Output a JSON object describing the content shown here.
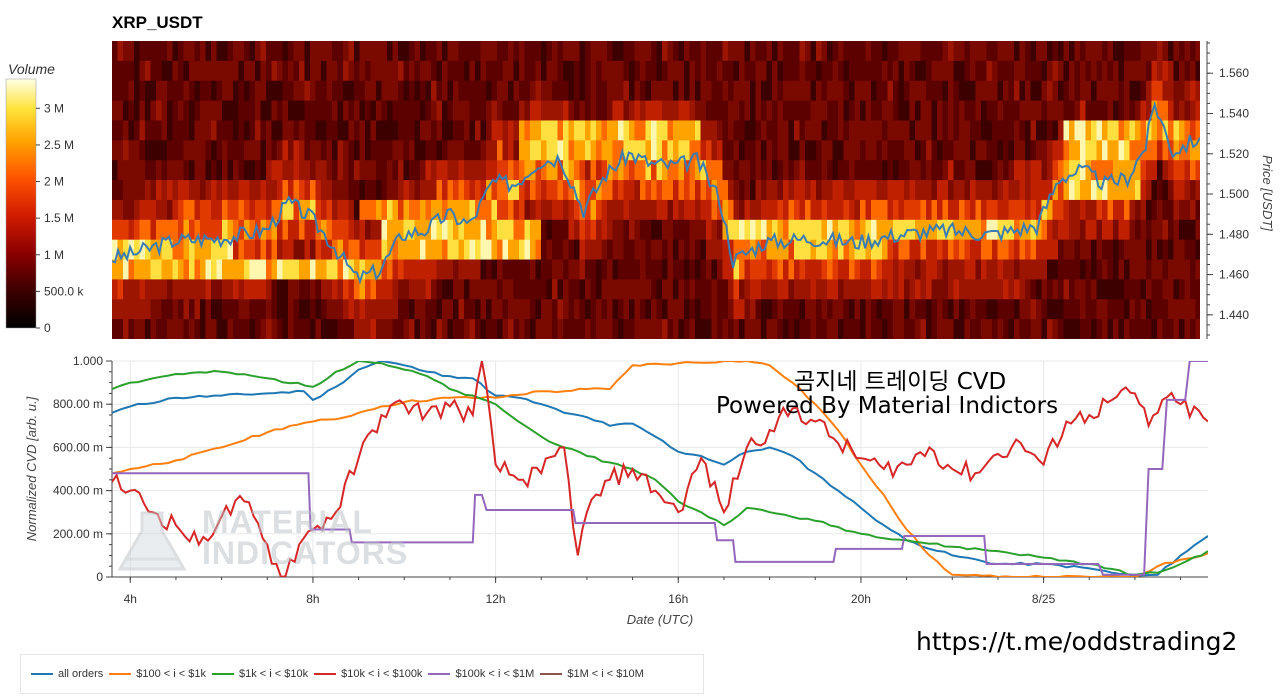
{
  "title": "XRP_USDT",
  "colorbar": {
    "label": "Volume",
    "ticks": [
      {
        "label": "0",
        "value": 0
      },
      {
        "label": "500.0 k",
        "value": 500000
      },
      {
        "label": "1 M",
        "value": 1000000
      },
      {
        "label": "1.5 M",
        "value": 1500000
      },
      {
        "label": "2 M",
        "value": 2000000
      },
      {
        "label": "2.5 M",
        "value": 2500000
      },
      {
        "label": "3 M",
        "value": 3000000
      }
    ],
    "max": 3400000
  },
  "heatmap": {
    "ylabel": "Price [USDT]",
    "ylim": [
      1.428,
      1.576
    ],
    "yticks": [
      "1.440",
      "1.460",
      "1.480",
      "1.500",
      "1.520",
      "1.540",
      "1.560"
    ]
  },
  "cvd_panel": {
    "ylabel": "Normalized CVD [arb. u.]",
    "xlabel": "Date (UTC)",
    "xlim_hours": [
      3.6,
      27.6
    ],
    "xticks": [
      {
        "label": "4h",
        "hour": 4
      },
      {
        "label": "8h",
        "hour": 8
      },
      {
        "label": "12h",
        "hour": 12
      },
      {
        "label": "16h",
        "hour": 16
      },
      {
        "label": "20h",
        "hour": 20
      },
      {
        "label": "8/25",
        "hour": 24
      }
    ],
    "yticks": [
      {
        "label": "0",
        "value": 0
      },
      {
        "label": "200.00 m",
        "value": 0.2
      },
      {
        "label": "400.00 m",
        "value": 0.4
      },
      {
        "label": "600.00 m",
        "value": 0.6
      },
      {
        "label": "800.00 m",
        "value": 0.8
      },
      {
        "label": "1.000",
        "value": 1.0
      }
    ]
  },
  "annotations": {
    "cvd_title": "곰지네 트레이딩 CVD",
    "powered_by": "Powered By Material Indictors",
    "telegram": "https://t.me/oddstrading2",
    "logo_text": "MATERIAL INDICATORS"
  },
  "chart_data": [
    {
      "type": "heatmap",
      "title": "XRP_USDT",
      "ylabel": "Price [USDT]",
      "ylim": [
        1.428,
        1.576
      ],
      "price_series": {
        "name": "",
        "color": "#3b7db3",
        "x_hours": [
          3.6,
          4,
          5,
          6,
          7,
          7.5,
          8,
          8.5,
          9,
          9.5,
          10,
          10.5,
          11,
          11.5,
          12,
          12.5,
          13,
          13.5,
          14,
          14.5,
          15,
          15.5,
          16,
          16.5,
          17,
          17.3,
          18,
          19,
          20,
          21,
          22,
          23,
          24,
          24.5,
          25,
          25.5,
          26,
          26.4,
          26.6,
          27,
          27.6
        ],
        "values": [
          1.468,
          1.47,
          1.477,
          1.478,
          1.482,
          1.496,
          1.488,
          1.474,
          1.458,
          1.462,
          1.48,
          1.482,
          1.49,
          1.485,
          1.506,
          1.505,
          1.516,
          1.518,
          1.492,
          1.51,
          1.52,
          1.515,
          1.514,
          1.517,
          1.498,
          1.467,
          1.476,
          1.478,
          1.476,
          1.48,
          1.482,
          1.48,
          1.484,
          1.508,
          1.512,
          1.505,
          1.508,
          1.524,
          1.545,
          1.521,
          1.528
        ]
      },
      "volume_bands": [
        {
          "price_low": 1.462,
          "price_high": 1.47,
          "hours": [
            3.6,
            9.5
          ],
          "level": "high"
        },
        {
          "price_low": 1.47,
          "price_high": 1.478,
          "hours": [
            3.6,
            6.2
          ],
          "level": "high"
        },
        {
          "price_low": 1.472,
          "price_high": 1.49,
          "hours": [
            9.5,
            13
          ],
          "level": "high"
        },
        {
          "price_low": 1.478,
          "price_high": 1.49,
          "hours": [
            17,
            24
          ],
          "level": "high"
        },
        {
          "price_low": 1.49,
          "price_high": 1.5,
          "hours": [
            9,
            12
          ],
          "level": "mid"
        },
        {
          "price_low": 1.52,
          "price_high": 1.534,
          "hours": [
            12.5,
            16.5
          ],
          "level": "high"
        },
        {
          "price_low": 1.5,
          "price_high": 1.532,
          "hours": [
            24.5,
            26.2
          ],
          "level": "high"
        },
        {
          "price_low": 1.522,
          "price_high": 1.535,
          "hours": [
            26.2,
            27.6
          ],
          "level": "mid"
        }
      ]
    },
    {
      "type": "line",
      "ylabel": "Normalized CVD [arb. u.]",
      "xlabel": "Date (UTC)",
      "ylim": [
        0,
        1.0
      ],
      "xlim_hours": [
        3.6,
        27.6
      ],
      "series": [
        {
          "name": "all orders",
          "color": "#1f77b4",
          "x": [
            3.6,
            4,
            5,
            6,
            7,
            7.8,
            8,
            8.5,
            9,
            9.5,
            10,
            10.5,
            11,
            11.5,
            12,
            12.5,
            13,
            13.5,
            14,
            14.5,
            15,
            15.5,
            16,
            16.5,
            17,
            17.5,
            18,
            18.5,
            19,
            19.5,
            20,
            20.5,
            21,
            22,
            23,
            24,
            25,
            25.5,
            26,
            26.5,
            27,
            27.6
          ],
          "values": [
            0.76,
            0.79,
            0.83,
            0.84,
            0.85,
            0.86,
            0.82,
            0.88,
            0.96,
            1.0,
            0.98,
            0.95,
            0.93,
            0.92,
            0.84,
            0.83,
            0.8,
            0.76,
            0.74,
            0.7,
            0.71,
            0.65,
            0.58,
            0.56,
            0.52,
            0.58,
            0.6,
            0.56,
            0.48,
            0.4,
            0.32,
            0.24,
            0.17,
            0.1,
            0.06,
            0.06,
            0.04,
            0.02,
            0.005,
            0.01,
            0.1,
            0.19
          ]
        },
        {
          "name": "$100 < i < $1k",
          "color": "#ff7f0e",
          "x": [
            3.6,
            4,
            5,
            6,
            7,
            7.5,
            8,
            8.5,
            9,
            9.5,
            10,
            11,
            12,
            13,
            13.5,
            14,
            14.5,
            15,
            16,
            17,
            17.5,
            18,
            18.5,
            19,
            19.5,
            20,
            20.5,
            21,
            21.5,
            22,
            23,
            24,
            25,
            26,
            26.5,
            27,
            27.6
          ],
          "values": [
            0.48,
            0.5,
            0.54,
            0.6,
            0.67,
            0.7,
            0.72,
            0.73,
            0.76,
            0.79,
            0.81,
            0.83,
            0.83,
            0.86,
            0.86,
            0.87,
            0.87,
            0.98,
            0.99,
            1.0,
            1.0,
            0.98,
            0.9,
            0.8,
            0.68,
            0.52,
            0.38,
            0.22,
            0.1,
            0.01,
            0.0,
            0.0,
            0.0,
            0.0,
            0.05,
            0.08,
            0.11
          ]
        },
        {
          "name": "$1k < i < $10k",
          "color": "#2ca02c",
          "x": [
            3.6,
            4,
            5,
            6,
            7,
            8,
            8.5,
            9,
            9.5,
            10,
            10.5,
            11,
            12,
            12.5,
            13,
            13.5,
            14,
            14.5,
            15,
            15.5,
            16,
            16.5,
            17,
            17.5,
            18,
            19,
            20,
            21,
            22,
            23,
            24,
            25,
            26,
            26.5,
            27,
            27.6
          ],
          "values": [
            0.87,
            0.9,
            0.94,
            0.95,
            0.92,
            0.88,
            0.95,
            1.0,
            0.99,
            0.96,
            0.93,
            0.87,
            0.8,
            0.72,
            0.65,
            0.6,
            0.56,
            0.53,
            0.5,
            0.45,
            0.35,
            0.3,
            0.24,
            0.32,
            0.3,
            0.26,
            0.2,
            0.17,
            0.14,
            0.12,
            0.09,
            0.06,
            0.01,
            0.02,
            0.06,
            0.12
          ]
        },
        {
          "name": "$10k < i < $100k",
          "color": "#d62728",
          "x": [
            3.6,
            4,
            4.5,
            5,
            5.5,
            6,
            6.5,
            7,
            7.3,
            7.8,
            8,
            8.5,
            9,
            9.5,
            10,
            10.5,
            11,
            11.5,
            11.7,
            12,
            12.5,
            13,
            13.5,
            13.8,
            14,
            14.5,
            15,
            15.5,
            16,
            16.5,
            17,
            17.5,
            18,
            18.5,
            19,
            19.5,
            20,
            20.5,
            21,
            21.5,
            22,
            22.5,
            23,
            23.5,
            24,
            24.5,
            25,
            25.5,
            26,
            26.3,
            26.6,
            27,
            27.6
          ],
          "values": [
            0.44,
            0.4,
            0.3,
            0.24,
            0.15,
            0.28,
            0.35,
            0.15,
            0.0,
            0.18,
            0.22,
            0.3,
            0.55,
            0.75,
            0.8,
            0.76,
            0.79,
            0.75,
            1.0,
            0.52,
            0.45,
            0.48,
            0.6,
            0.1,
            0.3,
            0.45,
            0.5,
            0.4,
            0.3,
            0.55,
            0.3,
            0.6,
            0.68,
            0.78,
            0.72,
            0.62,
            0.55,
            0.5,
            0.52,
            0.6,
            0.5,
            0.48,
            0.57,
            0.62,
            0.52,
            0.72,
            0.75,
            0.82,
            0.85,
            0.7,
            0.82,
            0.8,
            0.72
          ]
        },
        {
          "name": "$100k < i < $1M",
          "color": "#9467bd",
          "x": [
            3.6,
            7.9,
            7.95,
            8.8,
            8.85,
            11.5,
            11.55,
            11.7,
            11.8,
            13.7,
            13.75,
            16.8,
            16.85,
            17.2,
            17.25,
            19.4,
            19.45,
            20.9,
            20.95,
            22.7,
            22.75,
            25.2,
            25.3,
            26.2,
            26.3,
            26.6,
            26.7,
            27.1,
            27.2,
            27.6
          ],
          "values": [
            0.48,
            0.48,
            0.22,
            0.22,
            0.16,
            0.16,
            0.38,
            0.38,
            0.31,
            0.31,
            0.25,
            0.25,
            0.17,
            0.17,
            0.07,
            0.07,
            0.13,
            0.13,
            0.19,
            0.19,
            0.06,
            0.06,
            0.01,
            0.01,
            0.5,
            0.5,
            0.82,
            0.82,
            1.0,
            1.0
          ]
        },
        {
          "name": "$1M < i < $10M",
          "color": "#8c564b",
          "x": [],
          "values": []
        }
      ]
    }
  ]
}
